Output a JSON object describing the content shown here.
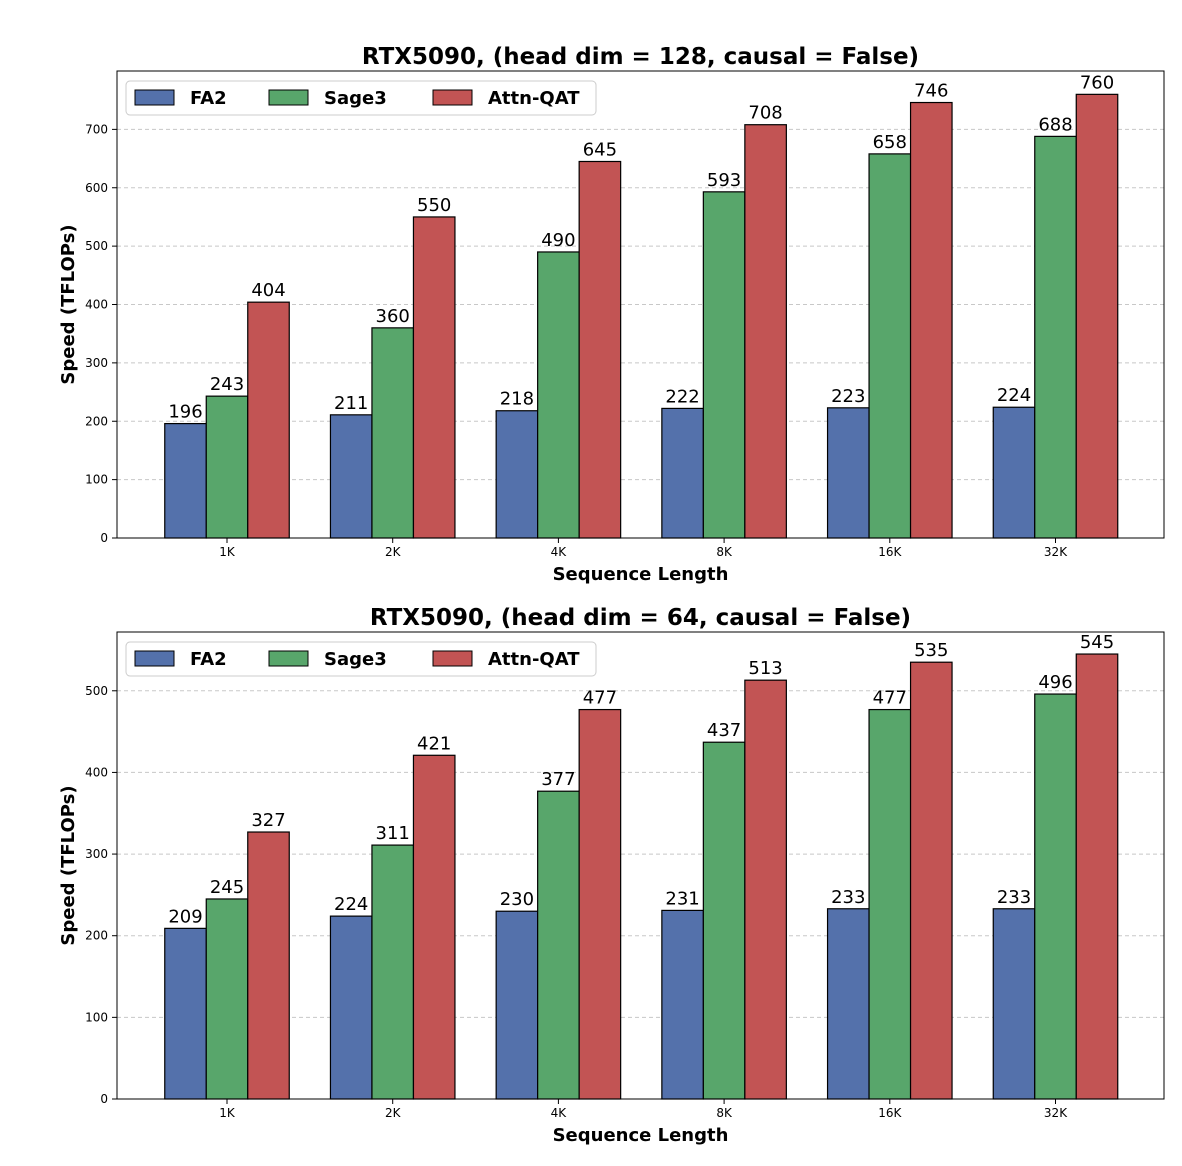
{
  "chart_data": [
    {
      "type": "bar",
      "title": "RTX5090, (head dim = 128, causal = False)",
      "xlabel": "Sequence Length",
      "ylabel": "Speed (TFLOPs)",
      "categories": [
        "1K",
        "2K",
        "4K",
        "8K",
        "16K",
        "32K"
      ],
      "series": [
        {
          "name": "FA2",
          "color": "#5471ab",
          "values": [
            196,
            211,
            218,
            222,
            223,
            224
          ]
        },
        {
          "name": "Sage3",
          "color": "#58a66b",
          "values": [
            243,
            360,
            490,
            593,
            658,
            688
          ]
        },
        {
          "name": "Attn-QAT",
          "color": "#c25454",
          "values": [
            404,
            550,
            645,
            708,
            746,
            760
          ]
        }
      ],
      "ylim": [
        0,
        800
      ],
      "yticks": [
        0,
        100,
        200,
        300,
        400,
        500,
        600,
        700
      ],
      "grid": "horizontal dashed",
      "legend_position": "top-left"
    },
    {
      "type": "bar",
      "title": "RTX5090, (head dim = 64, causal = False)",
      "xlabel": "Sequence Length",
      "ylabel": "Speed (TFLOPs)",
      "categories": [
        "1K",
        "2K",
        "4K",
        "8K",
        "16K",
        "32K"
      ],
      "series": [
        {
          "name": "FA2",
          "color": "#5471ab",
          "values": [
            209,
            224,
            230,
            231,
            233,
            233
          ]
        },
        {
          "name": "Sage3",
          "color": "#58a66b",
          "values": [
            245,
            311,
            377,
            437,
            477,
            496
          ]
        },
        {
          "name": "Attn-QAT",
          "color": "#c25454",
          "values": [
            327,
            421,
            477,
            513,
            535,
            545
          ]
        }
      ],
      "ylim": [
        0,
        572
      ],
      "yticks": [
        0,
        100,
        200,
        300,
        400,
        500
      ],
      "grid": "horizontal dashed",
      "legend_position": "top-left"
    }
  ]
}
